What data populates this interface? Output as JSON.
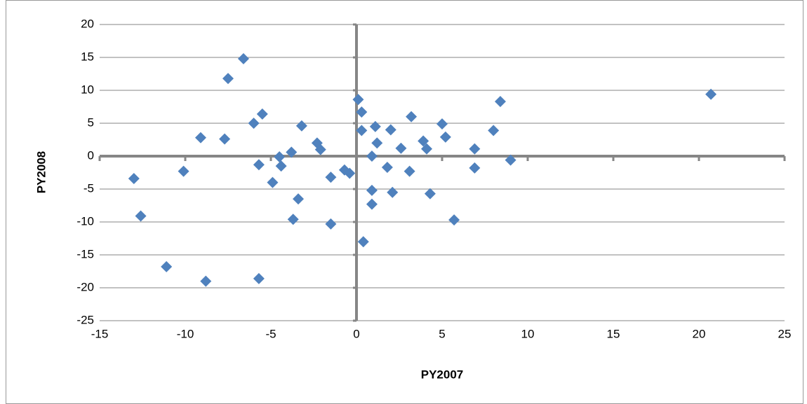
{
  "chart_data": {
    "type": "scatter",
    "x_label": "PY2007",
    "y_label": "PY2008",
    "color": "#4f81bd",
    "grid": true,
    "xlim": [
      -15,
      25
    ],
    "xticks": [
      -15,
      -10,
      -5,
      0,
      5,
      10,
      15,
      20,
      25
    ],
    "ylim": [
      -25,
      20
    ],
    "yticks": [
      -25,
      -20,
      -15,
      -10,
      -5,
      0,
      5,
      10,
      15,
      20
    ],
    "x": [
      -13.0,
      -12.6,
      -11.1,
      -10.1,
      -9.1,
      -8.8,
      -7.7,
      -7.5,
      -6.6,
      -6.0,
      -5.7,
      -5.5,
      -5.7,
      -4.9,
      -4.5,
      -4.4,
      -3.8,
      -3.7,
      -3.4,
      -3.2,
      -2.3,
      -2.1,
      -1.5,
      -1.5,
      -0.7,
      -0.4,
      0.1,
      0.3,
      0.3,
      0.4,
      0.9,
      0.9,
      0.9,
      1.1,
      1.2,
      1.8,
      2.0,
      2.1,
      2.6,
      3.1,
      3.2,
      3.9,
      4.1,
      4.3,
      5.0,
      5.2,
      5.7,
      6.9,
      6.9,
      8.0,
      8.4,
      9.0,
      20.7
    ],
    "values": [
      -3.4,
      -9.1,
      -16.8,
      -2.3,
      2.8,
      -19.0,
      2.6,
      11.8,
      14.8,
      5.0,
      -1.3,
      6.4,
      -18.6,
      -4.0,
      -0.1,
      -1.5,
      0.6,
      -9.6,
      -6.5,
      4.6,
      2.0,
      1.0,
      -3.2,
      -10.3,
      -2.1,
      -2.6,
      8.6,
      6.7,
      3.9,
      -13.0,
      -5.2,
      -7.3,
      0.0,
      4.5,
      2.0,
      -1.7,
      4.0,
      -5.5,
      1.2,
      -2.3,
      6.0,
      2.3,
      1.1,
      -5.7,
      4.9,
      2.9,
      -9.7,
      1.1,
      -1.8,
      3.9,
      8.3,
      -0.6,
      9.4
    ]
  }
}
